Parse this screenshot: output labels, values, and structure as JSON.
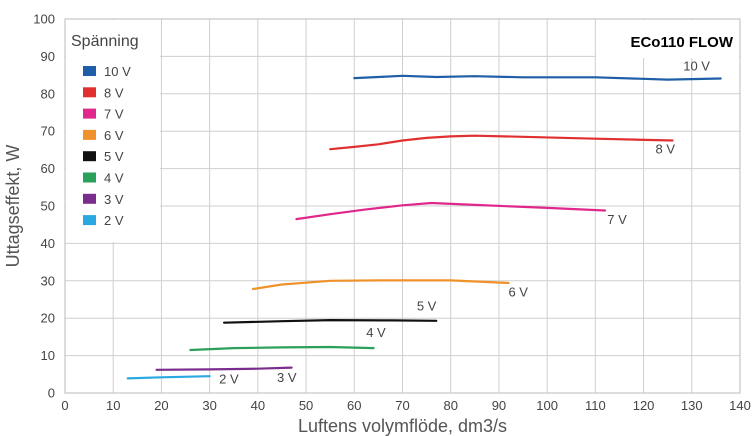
{
  "chart_data": {
    "type": "line",
    "title": "ECo110 FLOW",
    "xlabel": "Luftens volymflöde, dm3/s",
    "ylabel": "Uttagseffekt, W",
    "xlim": [
      0,
      140
    ],
    "ylim": [
      0,
      100
    ],
    "x_ticks": [
      0,
      10,
      20,
      30,
      40,
      50,
      60,
      70,
      80,
      90,
      100,
      110,
      120,
      130,
      140
    ],
    "y_ticks": [
      0,
      10,
      20,
      30,
      40,
      50,
      60,
      70,
      80,
      90,
      100
    ],
    "grid": true,
    "legend_title": "Spänning",
    "legend_position": "top-left",
    "series": [
      {
        "name": "10 V",
        "color": "#1f5fa8",
        "label": "10 V",
        "x": [
          60,
          65,
          70,
          77,
          85,
          95,
          110,
          125,
          136
        ],
        "y": [
          84.2,
          84.5,
          84.8,
          84.5,
          84.7,
          84.4,
          84.4,
          83.8,
          84.1
        ]
      },
      {
        "name": "8 V",
        "color": "#e03030",
        "label": "8 V",
        "x": [
          55,
          60,
          65,
          70,
          75,
          80,
          85,
          95,
          110,
          126
        ],
        "y": [
          65.2,
          65.8,
          66.5,
          67.5,
          68.2,
          68.6,
          68.8,
          68.5,
          68.0,
          67.5
        ]
      },
      {
        "name": "7 V",
        "color": "#e0288c",
        "label": "7 V",
        "x": [
          48,
          55,
          62,
          70,
          76,
          85,
          100,
          112
        ],
        "y": [
          46.5,
          47.8,
          49.0,
          50.2,
          50.8,
          50.3,
          49.5,
          48.8
        ]
      },
      {
        "name": "6 V",
        "color": "#f0922b",
        "label": "6 V",
        "x": [
          39,
          45,
          55,
          65,
          80,
          92
        ],
        "y": [
          27.8,
          29.0,
          30.0,
          30.1,
          30.1,
          29.4
        ]
      },
      {
        "name": "5 V",
        "color": "#111111",
        "label": "5 V",
        "x": [
          33,
          45,
          55,
          68,
          77
        ],
        "y": [
          18.8,
          19.2,
          19.5,
          19.4,
          19.3
        ]
      },
      {
        "name": "4 V",
        "color": "#2aa05a",
        "label": "4 V",
        "x": [
          26,
          35,
          45,
          55,
          64
        ],
        "y": [
          11.5,
          12.0,
          12.2,
          12.3,
          12.0
        ]
      },
      {
        "name": "3 V",
        "color": "#7b2d8e",
        "label": "3 V",
        "x": [
          19,
          30,
          40,
          47
        ],
        "y": [
          6.2,
          6.3,
          6.5,
          6.8
        ]
      },
      {
        "name": "2 V",
        "color": "#2aa8e0",
        "label": "2 V",
        "x": [
          13,
          20,
          30
        ],
        "y": [
          3.9,
          4.2,
          4.5
        ]
      }
    ]
  }
}
